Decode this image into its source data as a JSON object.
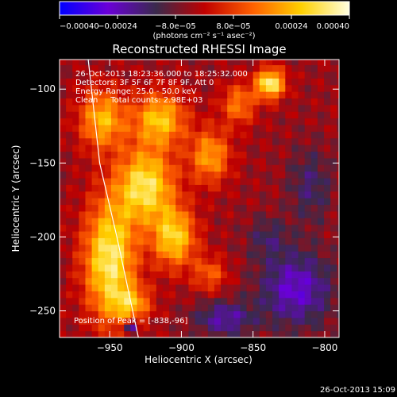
{
  "chart_data": {
    "type": "heatmap",
    "title": "Reconstructed RHESSI Image",
    "xlabel": "Heliocentric X (arcsec)",
    "ylabel": "Heliocentric Y (arcsec)",
    "xlim": [
      -985,
      -790
    ],
    "ylim": [
      -268,
      -80
    ],
    "xticks": [
      -950,
      -900,
      -850,
      -800
    ],
    "xtick_labels": [
      "−950",
      "−900",
      "−850",
      "−800"
    ],
    "yticks": [
      -250,
      -200,
      -150,
      -100
    ],
    "ytick_labels": [
      "−250",
      "−200",
      "−150",
      "−100"
    ],
    "colorbar": {
      "min": -0.0004,
      "max": 0.0004,
      "ticks": [
        -0.0004,
        -0.00024,
        -8e-05,
        8e-05,
        0.00024,
        0.0004
      ],
      "tick_labels": [
        "−0.00040",
        "−0.00024",
        "−8.0e−05",
        "8.0e−05",
        "0.00024",
        "0.00040"
      ],
      "units_label": "(photons cm⁻² s⁻¹ asec⁻²)",
      "colors": [
        "#0000ff",
        "#6a00d8",
        "#3a2a4c",
        "#c00000",
        "#ff6000",
        "#ffd000",
        "#ffffe0"
      ]
    },
    "info_lines": [
      "26-Oct-2013 18:23:36.000 to 18:25:32.000",
      "Detectors: 3F 5F 6F 7F 8F 9F, Att 0",
      "Energy Range: 25.0 - 50.0 keV",
      "Clean     Total counts: 2.98E+03"
    ],
    "peak_label": "Position of Peak = [-838,-96]",
    "peak": [
      -838,
      -96
    ],
    "limb": [
      [
        -965,
        -80
      ],
      [
        -957,
        -150
      ],
      [
        -945,
        -200
      ],
      [
        -930,
        -268
      ]
    ],
    "hot_spots": [
      {
        "x": -950,
        "y": -215,
        "v": 0.00038,
        "sx": 18,
        "sy": 40
      },
      {
        "x": -925,
        "y": -165,
        "v": 0.00036,
        "sx": 20,
        "sy": 25
      },
      {
        "x": -905,
        "y": -200,
        "v": 0.00032,
        "sx": 15,
        "sy": 20
      },
      {
        "x": -915,
        "y": -120,
        "v": 0.0003,
        "sx": 18,
        "sy": 18
      },
      {
        "x": -955,
        "y": -120,
        "v": 0.00028,
        "sx": 16,
        "sy": 20
      },
      {
        "x": -880,
        "y": -145,
        "v": 0.00025,
        "sx": 14,
        "sy": 18
      },
      {
        "x": -838,
        "y": -96,
        "v": 0.0004,
        "sx": 10,
        "sy": 10
      },
      {
        "x": -860,
        "y": -110,
        "v": 0.0002,
        "sx": 12,
        "sy": 14
      },
      {
        "x": -935,
        "y": -245,
        "v": 0.00022,
        "sx": 14,
        "sy": 12
      },
      {
        "x": -880,
        "y": -225,
        "v": 0.00016,
        "sx": 12,
        "sy": 12
      }
    ],
    "cold_spots": [
      {
        "x": -820,
        "y": -235,
        "v": -0.00022,
        "sx": 25,
        "sy": 25
      },
      {
        "x": -870,
        "y": -255,
        "v": -0.00018,
        "sx": 20,
        "sy": 12
      },
      {
        "x": -810,
        "y": -165,
        "v": -0.00012,
        "sx": 15,
        "sy": 25
      },
      {
        "x": -840,
        "y": -200,
        "v": -0.0001,
        "sx": 14,
        "sy": 14
      },
      {
        "x": -935,
        "y": -260,
        "v": -0.00028,
        "sx": 5,
        "sy": 4
      }
    ]
  },
  "footer": {
    "timestamp": "26-Oct-2013 15:09"
  }
}
